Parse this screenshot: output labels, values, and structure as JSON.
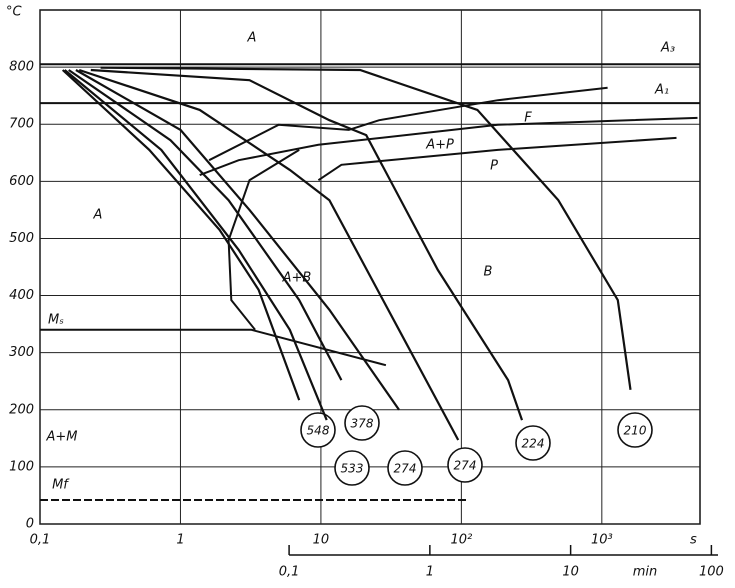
{
  "chart_data": {
    "type": "cct",
    "y_unit": "°C",
    "x_unit": "s",
    "x2_unit": "min",
    "log_x": true,
    "grid": true,
    "xlim": [
      0.1,
      5000
    ],
    "xticks": [
      {
        "value": 0.1,
        "label": "0,1"
      },
      1,
      10,
      {
        "value": 100,
        "label": "10²"
      },
      {
        "value": 1000,
        "label": "10³"
      }
    ],
    "x2lim": [
      0.0017,
      83
    ],
    "x2ticks": [
      {
        "value": 0.1,
        "label": "0,1"
      },
      1,
      10,
      100
    ],
    "ylim": [
      0,
      900
    ],
    "yticks": [
      0,
      100,
      200,
      300,
      400,
      500,
      600,
      700,
      800
    ],
    "cooling_curves": [
      {
        "hardness": 548,
        "x": [
          0.145,
          0.6,
          1.9,
          3.6,
          7
        ],
        "y": [
          795,
          655,
          515,
          410,
          217
        ]
      },
      {
        "hardness": 533,
        "x": [
          0.15,
          0.73,
          2.6,
          6,
          11
        ],
        "y": [
          795,
          655,
          480,
          340,
          182
        ]
      },
      {
        "hardness": 378,
        "x": [
          0.16,
          0.85,
          2.2,
          7,
          14
        ],
        "y": [
          795,
          672,
          567,
          392,
          252
        ]
      },
      {
        "hardness": 274,
        "x": [
          0.18,
          1.0,
          3.1,
          11.5,
          36
        ],
        "y": [
          795,
          690,
          550,
          375,
          200
        ]
      },
      {
        "hardness": 274,
        "x": [
          0.19,
          1.37,
          6,
          11.5,
          36,
          95
        ],
        "y": [
          795,
          725,
          620,
          567,
          340,
          147
        ]
      },
      {
        "hardness": 224,
        "x": [
          0.23,
          3.1,
          11.5,
          21,
          68,
          215,
          270
        ],
        "y": [
          795,
          777,
          707,
          681,
          445,
          252,
          182
        ]
      },
      {
        "hardness": 210,
        "x": [
          0.27,
          19,
          130,
          490,
          1300,
          1600
        ],
        "y": [
          799,
          795,
          725,
          567,
          392,
          235
        ]
      }
    ],
    "boundaries": [
      {
        "x": [
          0.1,
          5000
        ],
        "y": [
          805,
          805
        ]
      },
      {
        "x": [
          0.1,
          5000
        ],
        "y": [
          737,
          737
        ]
      },
      {
        "x": [
          1.6,
          5,
          15.8,
          26,
          182,
          1100
        ],
        "y": [
          637,
          699,
          690,
          707,
          742,
          764
        ]
      },
      {
        "x": [
          1.37,
          2.6,
          9.6,
          182,
          4800
        ],
        "y": [
          611,
          637,
          664,
          699,
          711
        ]
      },
      {
        "x": [
          9.6,
          14,
          182,
          3400
        ],
        "y": [
          602,
          629,
          655,
          676
        ]
      },
      {
        "x": [
          7,
          3.1,
          2.2,
          2.3,
          3.4
        ],
        "y": [
          655,
          602,
          497,
          392,
          340
        ]
      },
      {
        "x": [
          0.1,
          3.2,
          29
        ],
        "y": [
          340,
          340,
          278
        ]
      },
      {
        "x": [
          0.1,
          110
        ],
        "y": [
          42,
          42
        ]
      }
    ],
    "annotations": [
      "A",
      "A₃",
      "A₁",
      "F",
      "A+P",
      "P",
      "A",
      "A+B",
      "B",
      "Mₛ",
      "A+M",
      "Mf"
    ]
  }
}
